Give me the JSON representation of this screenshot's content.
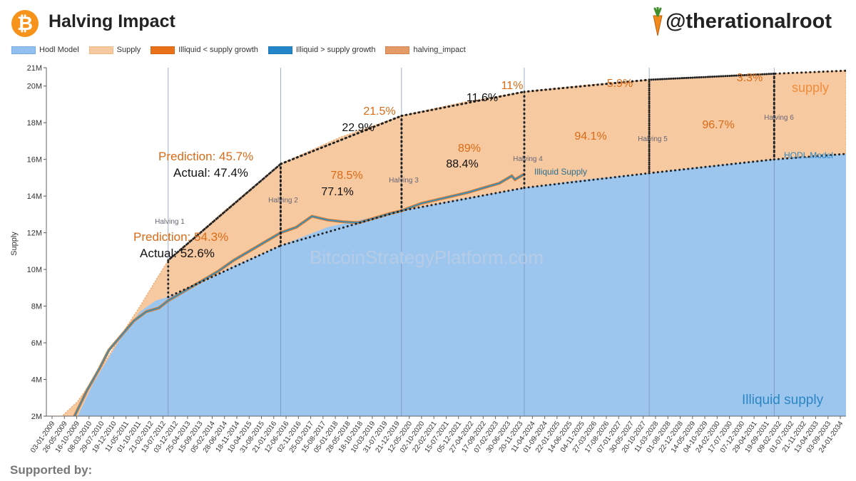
{
  "header": {
    "title": "Halving Impact",
    "handle": "@therationalroot",
    "logo_glyph": "₿"
  },
  "legend": [
    {
      "label": "Hodl Model",
      "color": "#90bff0",
      "border": "#5b9bd5"
    },
    {
      "label": "Supply",
      "color": "#f6c9a0",
      "border": "#f0a868"
    },
    {
      "label": "Illiquid < supply growth",
      "color": "#e8711a",
      "border": "#c85a10"
    },
    {
      "label": "Illiquid > supply growth",
      "color": "#2386c8",
      "border": "#1a6aa0"
    },
    {
      "label": "halving_impact",
      "color": "#e49a66",
      "border": "#c8703a"
    }
  ],
  "footer": {
    "text": "Supported by:"
  },
  "colors": {
    "hodl": "#9dc6ef",
    "supply": "#f7c9a0",
    "impact": "#e59c66",
    "illiquid_line": "#3a8fb8",
    "illiquid_dot": "#e07a2a",
    "orange_text": "#d96b17",
    "blue_text": "#2b86c4"
  },
  "chart_data": {
    "type": "area",
    "title": "Halving Impact",
    "ylabel": "Supply",
    "xlabel": "",
    "ylim": [
      2000000,
      21000000
    ],
    "xlim": [
      2009.0,
      2034.6
    ],
    "y_ticks": [
      2000000,
      4000000,
      6000000,
      8000000,
      10000000,
      12000000,
      14000000,
      16000000,
      18000000,
      20000000,
      21000000
    ],
    "y_tick_labels": [
      "2M",
      "4M",
      "6M",
      "8M",
      "10M",
      "12M",
      "14M",
      "16M",
      "18M",
      "20M",
      "21M"
    ],
    "x_tick_labels": [
      "03-01-2009",
      "26-05-2009",
      "16-10-2009",
      "08-03-2010",
      "29-07-2010",
      "19-12-2010",
      "11-05-2011",
      "01-10-2011",
      "21-02-2012",
      "13-07-2012",
      "03-12-2012",
      "25-04-2013",
      "15-09-2013",
      "05-02-2014",
      "28-06-2014",
      "18-11-2014",
      "10-04-2015",
      "31-08-2015",
      "21-01-2016",
      "12-06-2016",
      "02-11-2016",
      "25-03-2017",
      "15-08-2017",
      "05-01-2018",
      "28-05-2018",
      "18-10-2018",
      "10-03-2019",
      "31-07-2019",
      "21-12-2019",
      "12-05-2020",
      "02-10-2020",
      "22-02-2021",
      "15-07-2021",
      "05-12-2021",
      "27-04-2022",
      "17-09-2022",
      "07-02-2023",
      "30-06-2023",
      "20-11-2023",
      "11-04-2024",
      "01-09-2024",
      "22-01-2025",
      "14-06-2025",
      "04-11-2025",
      "27-03-2026",
      "17-08-2026",
      "07-01-2027",
      "30-05-2027",
      "20-10-2027",
      "11-03-2028",
      "01-08-2028",
      "22-12-2028",
      "14-05-2029",
      "04-10-2029",
      "24-02-2030",
      "17-07-2030",
      "07-12-2030",
      "29-04-2031",
      "19-09-2031",
      "09-02-2032",
      "01-07-2032",
      "21-11-2032",
      "13-04-2033",
      "03-09-2033",
      "24-01-2034"
    ],
    "halvings": [
      {
        "label": "Halving 1",
        "x": 2012.9,
        "supply": 10500000,
        "next_target": 15750000
      },
      {
        "label": "Halving 2",
        "x": 2016.5,
        "supply": 15750000,
        "next_target": 18375000
      },
      {
        "label": "Halving 3",
        "x": 2020.37,
        "supply": 18375000,
        "next_target": 19687500
      },
      {
        "label": "Halving 4",
        "x": 2024.3,
        "supply": 19687500,
        "next_target": 20343750
      },
      {
        "label": "Halving 5",
        "x": 2028.3,
        "supply": 20343750,
        "next_target": 20671875
      },
      {
        "label": "Halving 6",
        "x": 2032.3,
        "supply": 20671875,
        "next_target": 20835937
      }
    ],
    "series": [
      {
        "name": "Supply",
        "x": [
          2009.0,
          2009.5,
          2010.0,
          2010.5,
          2011.0,
          2011.5,
          2012.0,
          2012.5,
          2012.9,
          2014.7,
          2016.5,
          2018.4,
          2020.37,
          2022.3,
          2024.3,
          2026.3,
          2028.3,
          2030.3,
          2032.3,
          2033.5,
          2034.6
        ],
        "y": [
          1500000,
          1800000,
          2800000,
          4000000,
          5300000,
          6700000,
          8000000,
          9400000,
          10500000,
          13200000,
          15750000,
          17200000,
          18375000,
          19100000,
          19687500,
          20050000,
          20343750,
          20520000,
          20671875,
          20760000,
          20840000
        ]
      },
      {
        "name": "Hodl Model",
        "x": [
          2010.0,
          2010.5,
          2011.0,
          2011.5,
          2012.0,
          2012.5,
          2012.9,
          2014.0,
          2015.0,
          2016.5,
          2018.0,
          2020.37,
          2022.0,
          2024.3,
          2026.0,
          2028.3,
          2030.0,
          2032.3,
          2034.6
        ],
        "y": [
          2000000,
          3800000,
          5200000,
          6600000,
          7700000,
          8300000,
          8500000,
          9300000,
          10200000,
          11300000,
          12300000,
          13200000,
          13750000,
          14450000,
          14850000,
          15250000,
          15600000,
          16000000,
          16300000
        ]
      },
      {
        "name": "Illiquid Supply",
        "x": [
          2009.9,
          2010.3,
          2010.7,
          2011.0,
          2011.4,
          2011.8,
          2012.2,
          2012.6,
          2012.9,
          2013.4,
          2014.0,
          2014.5,
          2015.0,
          2015.5,
          2016.0,
          2016.5,
          2017.0,
          2017.5,
          2018.0,
          2018.5,
          2019.0,
          2019.5,
          2020.0,
          2020.37,
          2021.0,
          2021.5,
          2022.0,
          2022.5,
          2023.0,
          2023.5,
          2023.9,
          2024.0,
          2024.3
        ],
        "y": [
          2000000,
          3400000,
          4600000,
          5600000,
          6400000,
          7200000,
          7700000,
          7900000,
          8300000,
          8800000,
          9400000,
          9900000,
          10500000,
          11000000,
          11500000,
          12000000,
          12300000,
          12900000,
          12700000,
          12600000,
          12550000,
          12800000,
          13050000,
          13200000,
          13600000,
          13800000,
          14000000,
          14200000,
          14450000,
          14700000,
          15100000,
          14900000,
          15200000
        ]
      }
    ],
    "impact_labels": [
      {
        "halving": "Halving 1",
        "prediction": "54.3%",
        "actual": "52.6%",
        "prediction_prefix": "Prediction:",
        "actual_prefix": "Actual:"
      },
      {
        "halving": "Halving 2",
        "prediction": "45.7%",
        "actual": "47.4%",
        "prediction_prefix": "Prediction:",
        "actual_prefix": "Actual:"
      },
      {
        "halving": "Halving 2-3",
        "prediction": "78.5%",
        "actual": "77.1%"
      },
      {
        "halving": "Halving 3",
        "prediction": "21.5%",
        "actual": "22.9%"
      },
      {
        "halving": "Halving 3-4",
        "prediction": "89%",
        "actual": "88.4%"
      },
      {
        "halving": "Halving 4",
        "prediction": "11%",
        "actual": "11.6%"
      },
      {
        "halving": "Halving 4-5",
        "prediction": "94.1%"
      },
      {
        "halving": "Halving 5",
        "prediction": "5.9%"
      },
      {
        "halving": "Halving 5-6",
        "prediction": "96.7%"
      },
      {
        "halving": "Halving 6",
        "prediction": "3.3%"
      }
    ],
    "series_labels": {
      "supply": "supply",
      "hodl": "HODL Model",
      "illiquid": "Illiquid Supply",
      "illiquid_area": "Illiquid supply"
    },
    "watermark": "BitcoinStrategyPlatform.com"
  }
}
